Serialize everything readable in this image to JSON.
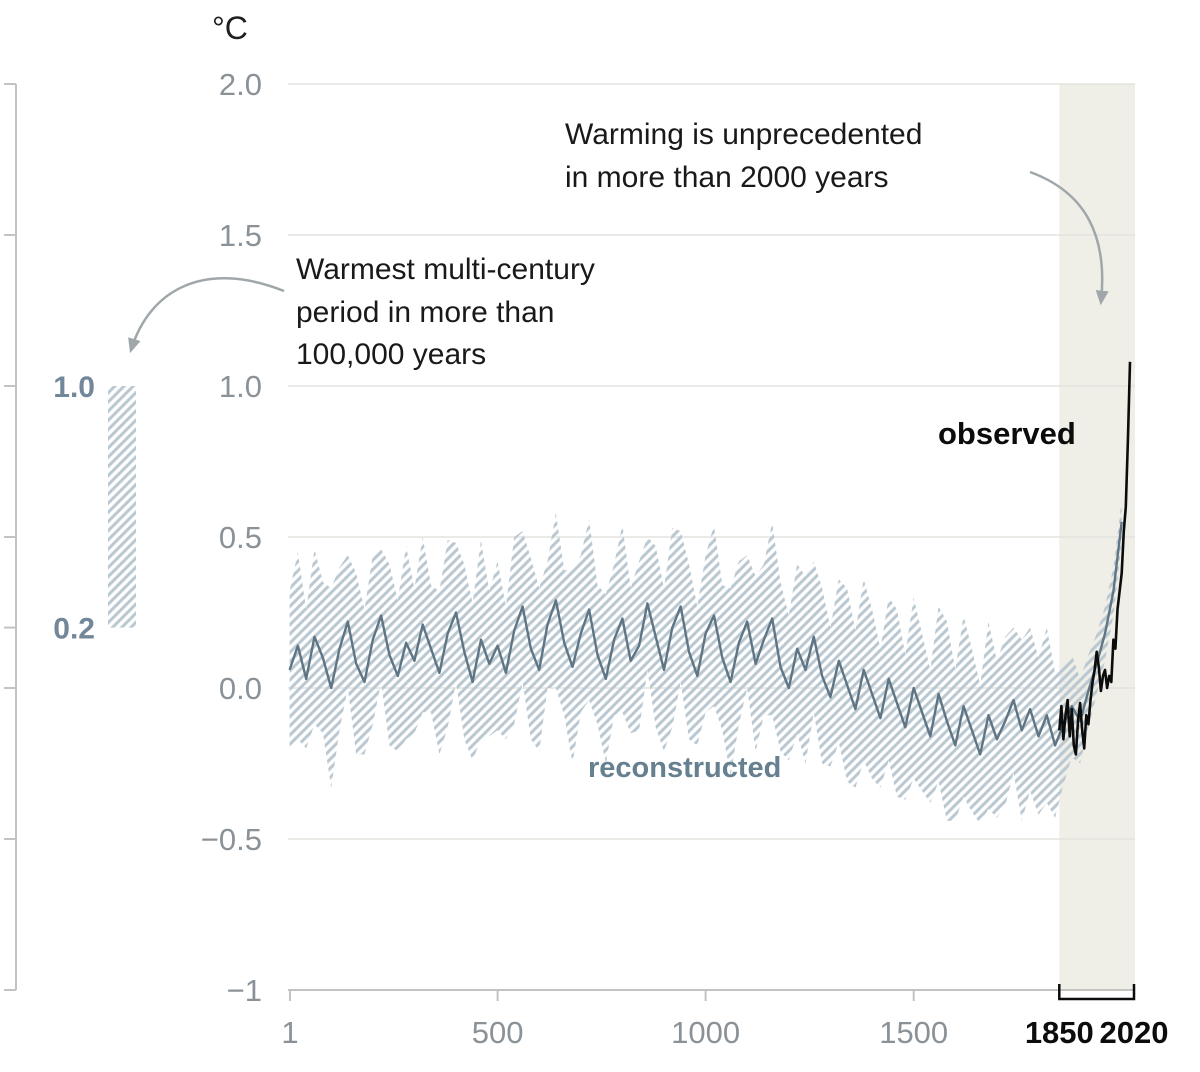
{
  "colors": {
    "observed": "#0c0c0c",
    "reconstructed": "#5f7584",
    "reconstructed_label": "#72889a",
    "band": "#b9c7d1",
    "shade": "#efeee7",
    "grid": "#e3e3df",
    "axis": "#c3c3c0",
    "tick": "#8b9297",
    "arrow": "#a0a7aa",
    "annotation_text": "#191919"
  },
  "chart_data": {
    "type": "line",
    "ylabel": "°C",
    "unit_label": "°C",
    "xlim": [
      1,
      2020
    ],
    "ylim": [
      -1,
      2
    ],
    "grid": true,
    "highlight_span": {
      "from": 1850,
      "to": 2020
    },
    "y_ticks": [
      {
        "value": 2.0,
        "label": "2.0"
      },
      {
        "value": 1.5,
        "label": "1.5"
      },
      {
        "value": 1.0,
        "label": "1.0"
      },
      {
        "value": 0.5,
        "label": "0.5"
      },
      {
        "value": 0.0,
        "label": "0.0"
      },
      {
        "value": -0.5,
        "label": "−0.5"
      },
      {
        "value": -1.0,
        "label": "−1"
      }
    ],
    "x_ticks": [
      {
        "value": 1,
        "label": "1",
        "emph": false
      },
      {
        "value": 500,
        "label": "500",
        "emph": false
      },
      {
        "value": 1000,
        "label": "1000",
        "emph": false
      },
      {
        "value": 1500,
        "label": "1500",
        "emph": false
      },
      {
        "value": 1850,
        "label": "1850",
        "emph": true
      },
      {
        "value": 2020,
        "label": "2020",
        "emph": true
      }
    ],
    "left_inset": {
      "description": "Warmest multi-century period range bar",
      "bar_range": [
        0.2,
        1.0
      ],
      "tick_values": [
        2.0,
        1.5,
        1.0,
        0.5,
        0.2,
        0.0,
        -0.5,
        -1.0
      ],
      "labels": [
        {
          "value": 1.0,
          "text": "1.0"
        },
        {
          "value": 0.2,
          "text": "0.2"
        }
      ]
    },
    "annotations": {
      "unprecedented": "Warming is unprecedented\nin more than 2000 years",
      "warmest_period": "Warmest multi-century\nperiod in more than\n100,000 years",
      "observed_label": "observed",
      "reconstructed_label": "reconstructed"
    },
    "series": [
      {
        "name": "reconstructed",
        "x_start": 0,
        "x_step": 20,
        "values": [
          0.06,
          0.14,
          0.03,
          0.17,
          0.1,
          0.0,
          0.13,
          0.22,
          0.08,
          0.02,
          0.16,
          0.24,
          0.11,
          0.04,
          0.15,
          0.09,
          0.21,
          0.13,
          0.05,
          0.18,
          0.25,
          0.12,
          0.02,
          0.16,
          0.08,
          0.14,
          0.05,
          0.19,
          0.27,
          0.13,
          0.06,
          0.21,
          0.29,
          0.15,
          0.07,
          0.18,
          0.26,
          0.11,
          0.03,
          0.16,
          0.23,
          0.09,
          0.14,
          0.28,
          0.17,
          0.06,
          0.2,
          0.27,
          0.12,
          0.04,
          0.18,
          0.24,
          0.1,
          0.02,
          0.15,
          0.22,
          0.08,
          0.16,
          0.23,
          0.07,
          0.0,
          0.13,
          0.06,
          0.17,
          0.04,
          -0.03,
          0.09,
          0.01,
          -0.07,
          0.06,
          -0.02,
          -0.1,
          0.03,
          -0.05,
          -0.13,
          0.0,
          -0.08,
          -0.16,
          -0.02,
          -0.11,
          -0.19,
          -0.06,
          -0.14,
          -0.22,
          -0.09,
          -0.17,
          -0.11,
          -0.04,
          -0.14,
          -0.07,
          -0.16,
          -0.09,
          -0.19,
          -0.12,
          -0.06,
          -0.11,
          -0.01,
          0.08,
          0.18,
          0.32,
          0.55
        ],
        "band_halfwidth": [
          0.26,
          0.31,
          0.23,
          0.29,
          0.25,
          0.33,
          0.27,
          0.22,
          0.3,
          0.24,
          0.28,
          0.22,
          0.3,
          0.25,
          0.32,
          0.24,
          0.29,
          0.21,
          0.27,
          0.31,
          0.23,
          0.29,
          0.26,
          0.33,
          0.24,
          0.28,
          0.22,
          0.31,
          0.25,
          0.3,
          0.27,
          0.21,
          0.29,
          0.24,
          0.32,
          0.26,
          0.3,
          0.23,
          0.28,
          0.25,
          0.31,
          0.24,
          0.28,
          0.22,
          0.3,
          0.27,
          0.33,
          0.25,
          0.29,
          0.23,
          0.26,
          0.3,
          0.24,
          0.31,
          0.27,
          0.22,
          0.29,
          0.25,
          0.32,
          0.28,
          0.24,
          0.28,
          0.31,
          0.25,
          0.29,
          0.23,
          0.27,
          0.32,
          0.26,
          0.3,
          0.28,
          0.23,
          0.27,
          0.31,
          0.24,
          0.3,
          0.26,
          0.22,
          0.29,
          0.33,
          0.25,
          0.3,
          0.27,
          0.23,
          0.31,
          0.26,
          0.28,
          0.24,
          0.3,
          0.27,
          0.26,
          0.29,
          0.24,
          0.2,
          0.17,
          0.14,
          0.12,
          0.1,
          0.09,
          0.08,
          0.07
        ]
      },
      {
        "name": "observed",
        "x_start": 1850,
        "x_step": 5,
        "values": [
          -0.14,
          -0.06,
          -0.17,
          -0.09,
          -0.04,
          -0.16,
          -0.07,
          -0.19,
          -0.22,
          -0.11,
          -0.05,
          -0.14,
          -0.2,
          -0.09,
          -0.12,
          -0.04,
          0.02,
          0.06,
          0.12,
          0.07,
          -0.01,
          0.04,
          0.06,
          0.0,
          0.04,
          0.02,
          0.16,
          0.13,
          0.26,
          0.32,
          0.38,
          0.52,
          0.6,
          0.82,
          1.08
        ]
      }
    ]
  }
}
